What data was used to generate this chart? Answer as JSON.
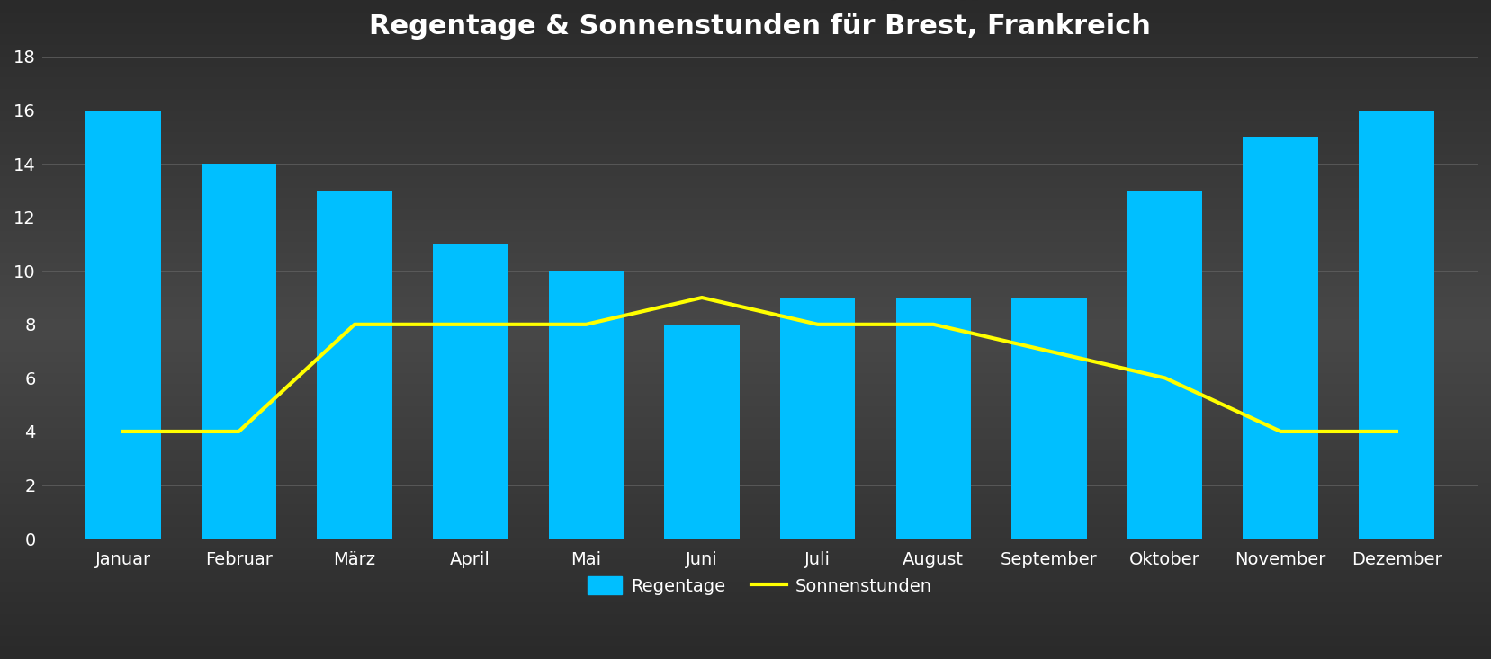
{
  "title": "Regentage & Sonnenstunden für Brest, Frankreich",
  "months": [
    "Januar",
    "Februar",
    "März",
    "April",
    "Mai",
    "Juni",
    "Juli",
    "August",
    "September",
    "Oktober",
    "November",
    "Dezember"
  ],
  "rainy_days": [
    16,
    14,
    13,
    11,
    10,
    8,
    9,
    9,
    9,
    13,
    15,
    16
  ],
  "sun_hours": [
    4,
    4,
    8,
    8,
    8,
    9,
    8,
    8,
    7,
    6,
    4,
    4
  ],
  "bar_color": "#00BFFF",
  "line_color": "#FFFF00",
  "background_top": "#2a2a2a",
  "background_mid": "#484848",
  "background_bot": "#2a2a2a",
  "text_color": "#ffffff",
  "grid_color": "#606060",
  "ylim": [
    0,
    18
  ],
  "yticks": [
    0,
    2,
    4,
    6,
    8,
    10,
    12,
    14,
    16,
    18
  ],
  "title_fontsize": 22,
  "tick_fontsize": 14,
  "legend_fontsize": 14,
  "bar_width": 0.65,
  "line_width": 3.0,
  "legend_bar_label": "Regentage",
  "legend_line_label": "Sonnenstunden"
}
